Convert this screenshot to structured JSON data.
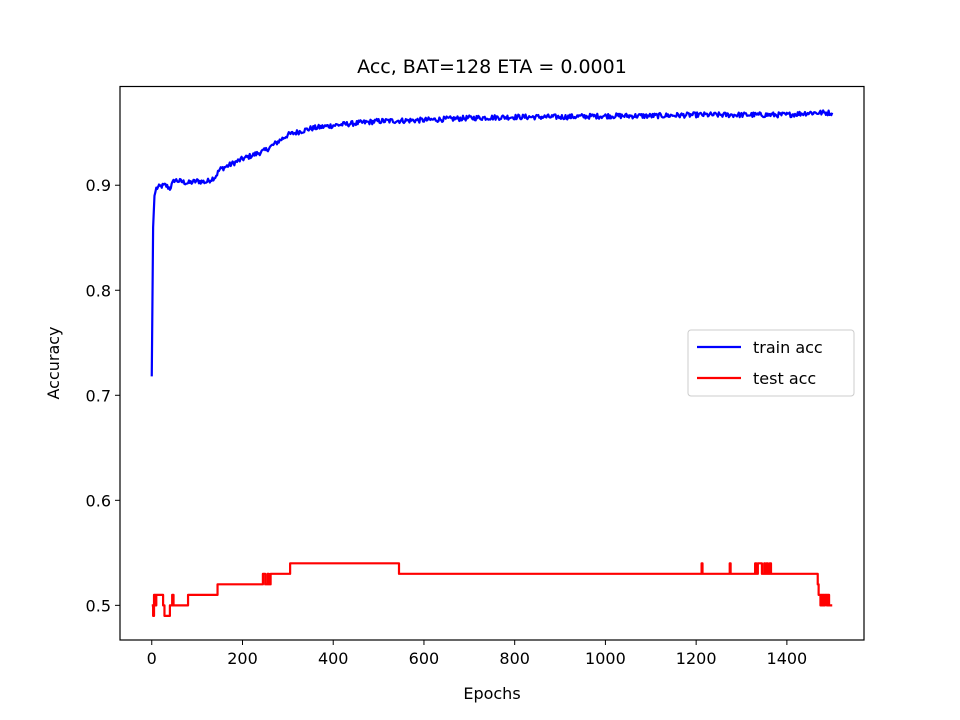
{
  "chart_data": {
    "type": "line",
    "title": "Acc, BAT=128 ETA = 0.0001",
    "xlabel": "Epochs",
    "ylabel": "Accuracy",
    "xlim": [
      -70,
      1570
    ],
    "ylim": [
      0.467,
      0.994
    ],
    "xticks": [
      0,
      200,
      400,
      600,
      800,
      1000,
      1200,
      1400
    ],
    "yticks": [
      0.5,
      0.6,
      0.7,
      0.8,
      0.9
    ],
    "ytick_labels": [
      "0.5",
      "0.6",
      "0.7",
      "0.8",
      "0.9"
    ],
    "grid": false,
    "legend_position": "center-right",
    "series": [
      {
        "name": "train acc",
        "color": "#0000ff",
        "noise": 0.0025,
        "x": [
          0,
          3,
          6,
          10,
          20,
          30,
          40,
          50,
          60,
          80,
          100,
          120,
          140,
          150,
          200,
          250,
          300,
          350,
          400,
          450,
          500,
          600,
          700,
          800,
          900,
          1000,
          1100,
          1200,
          1300,
          1400,
          1450,
          1500
        ],
        "y": [
          0.718,
          0.86,
          0.89,
          0.897,
          0.899,
          0.9,
          0.897,
          0.905,
          0.904,
          0.902,
          0.904,
          0.903,
          0.908,
          0.915,
          0.925,
          0.933,
          0.948,
          0.954,
          0.957,
          0.959,
          0.961,
          0.962,
          0.964,
          0.965,
          0.965,
          0.966,
          0.966,
          0.967,
          0.967,
          0.967,
          0.969,
          0.969
        ]
      },
      {
        "name": "test acc",
        "color": "#ff0000",
        "step": true,
        "x": [
          0,
          3,
          5,
          8,
          10,
          25,
          28,
          35,
          40,
          45,
          48,
          52,
          60,
          75,
          80,
          140,
          145,
          240,
          245,
          250,
          255,
          258,
          262,
          265,
          270,
          300,
          305,
          540,
          545,
          1212,
          1214,
          1216,
          1274,
          1276,
          1278,
          1330,
          1333,
          1336,
          1340,
          1345,
          1350,
          1352,
          1355,
          1358,
          1362,
          1365,
          1370,
          1465,
          1468,
          1470,
          1474,
          1476,
          1478,
          1480,
          1482,
          1484,
          1488,
          1490,
          1493,
          1495,
          1500
        ],
        "y": [
          0.5,
          0.49,
          0.51,
          0.5,
          0.51,
          0.5,
          0.49,
          0.49,
          0.5,
          0.51,
          0.5,
          0.5,
          0.5,
          0.5,
          0.51,
          0.51,
          0.52,
          0.52,
          0.53,
          0.52,
          0.53,
          0.52,
          0.53,
          0.53,
          0.53,
          0.53,
          0.54,
          0.54,
          0.53,
          0.54,
          0.53,
          0.53,
          0.54,
          0.53,
          0.53,
          0.54,
          0.53,
          0.54,
          0.54,
          0.53,
          0.54,
          0.53,
          0.54,
          0.53,
          0.54,
          0.53,
          0.53,
          0.53,
          0.52,
          0.51,
          0.5,
          0.51,
          0.5,
          0.51,
          0.5,
          0.51,
          0.5,
          0.51,
          0.5,
          0.5,
          0.5
        ]
      }
    ]
  }
}
